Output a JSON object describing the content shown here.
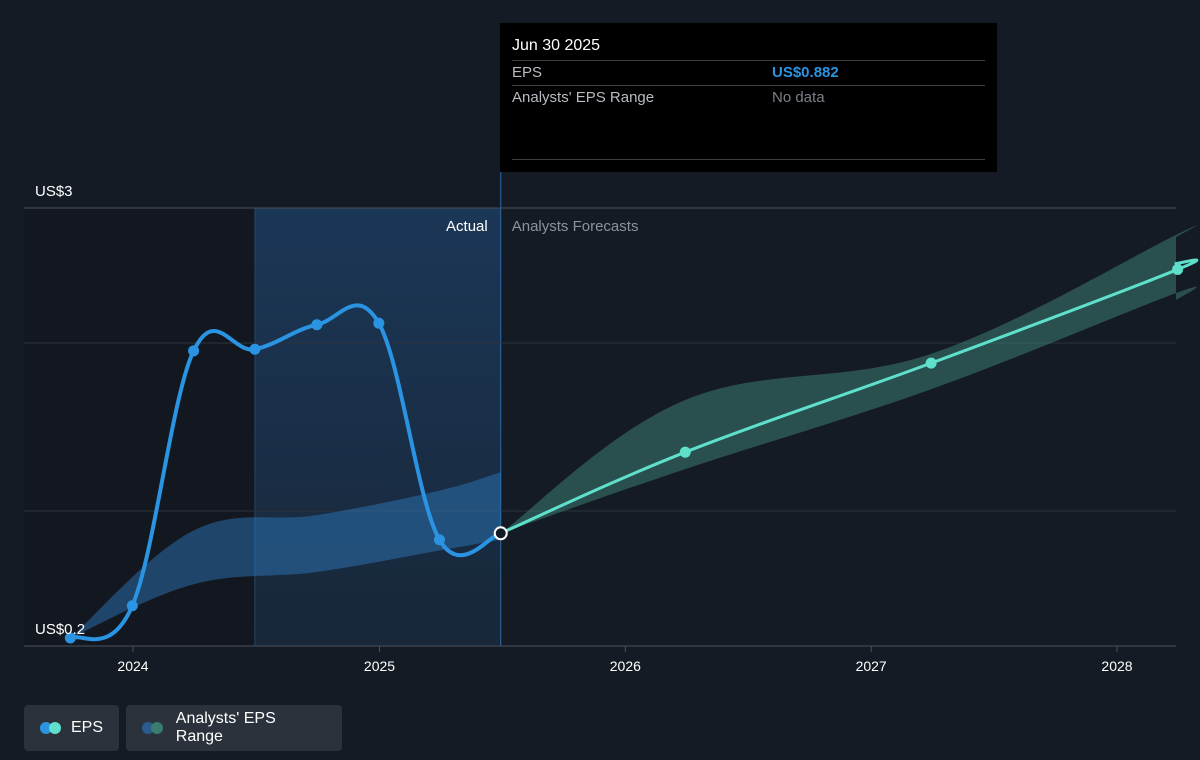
{
  "tooltip": {
    "date": "Jun 30 2025",
    "rows": [
      {
        "label": "EPS",
        "value": "US$0.882",
        "color": "#2a94e3"
      },
      {
        "label": "Analysts' EPS Range",
        "value": "No data",
        "color": "#7b8088"
      }
    ]
  },
  "legend": {
    "eps_label": "EPS",
    "range_label": "Analysts' EPS Range"
  },
  "colors": {
    "background": "#151b24",
    "actual_line": "#2a94e3",
    "forecast_line": "#5ee0cb",
    "forecast_band": "#3b7b72",
    "actual_band": "#2f7fc5"
  },
  "chart_data": {
    "type": "line",
    "y_top_label": "US$3",
    "y_bottom_label": "US$0.2",
    "ylim": [
      0.2,
      3
    ],
    "x_ticks": [
      "2024",
      "2025",
      "2026",
      "2027",
      "2028"
    ],
    "region_labels": {
      "actual": "Actual",
      "forecast": "Analysts Forecasts"
    },
    "grid": true,
    "series": [
      {
        "name": "EPS",
        "kind": "actual",
        "points": [
          {
            "x": "2023-09-30",
            "y": 0.2
          },
          {
            "x": "2023-12-31",
            "y": 0.41
          },
          {
            "x": "2024-03-31",
            "y": 2.07
          },
          {
            "x": "2024-06-30",
            "y": 2.08
          },
          {
            "x": "2024-09-30",
            "y": 2.24
          },
          {
            "x": "2024-12-31",
            "y": 2.25
          },
          {
            "x": "2025-03-31",
            "y": 0.84
          },
          {
            "x": "2025-06-30",
            "y": 0.882
          }
        ]
      },
      {
        "name": "EPS",
        "kind": "forecast",
        "points": [
          {
            "x": "2025-06-30",
            "y": 0.882
          },
          {
            "x": "2026-03-31",
            "y": 1.41
          },
          {
            "x": "2027-03-31",
            "y": 1.99
          },
          {
            "x": "2028-03-31",
            "y": 2.6
          }
        ]
      }
    ],
    "ranges": [
      {
        "name": "Analysts' EPS Range",
        "kind": "actual",
        "points": [
          {
            "x": "2023-09-30",
            "low": 0.2,
            "high": 0.2
          },
          {
            "x": "2024-03-31",
            "low": 0.55,
            "high": 0.9
          },
          {
            "x": "2024-09-30",
            "low": 0.63,
            "high": 1.0
          },
          {
            "x": "2025-03-31",
            "low": 0.77,
            "high": 1.16
          },
          {
            "x": "2025-06-30",
            "low": 0.84,
            "high": 1.28
          }
        ]
      },
      {
        "name": "Analysts' EPS Range",
        "kind": "forecast",
        "points": [
          {
            "x": "2025-06-30",
            "low": 0.882,
            "high": 0.882
          },
          {
            "x": "2026-03-31",
            "low": 1.3,
            "high": 1.75
          },
          {
            "x": "2027-03-31",
            "low": 1.82,
            "high": 2.05
          },
          {
            "x": "2028-03-31",
            "low": 2.45,
            "high": 2.83
          }
        ]
      }
    ]
  }
}
